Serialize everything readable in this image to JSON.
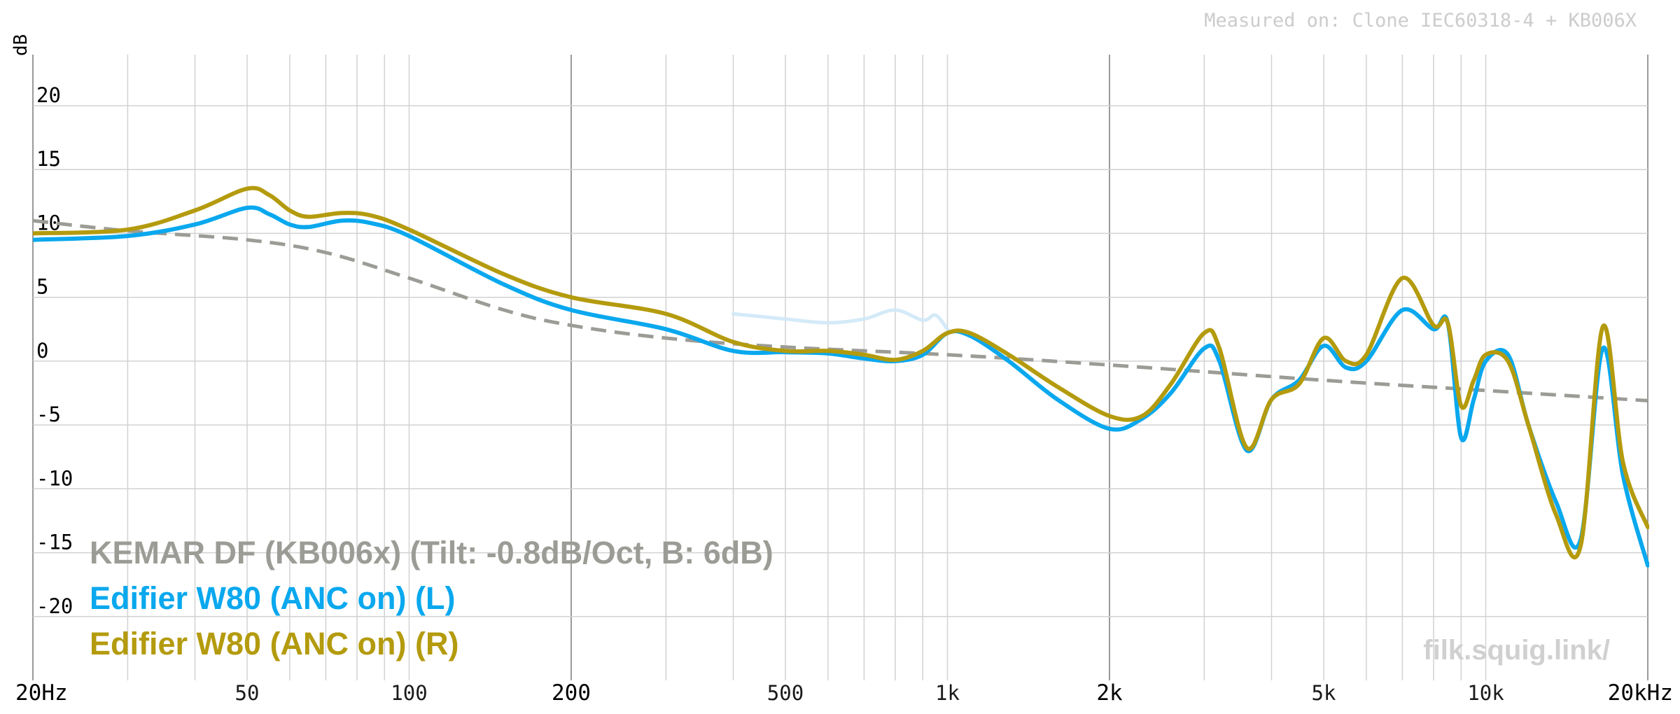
{
  "header": {
    "measured_on": "Measured on: Clone IEC60318-4 + KB006X",
    "watermark": "filk.squig.link/"
  },
  "chart_data": {
    "type": "line",
    "title": "",
    "xlabel": "",
    "ylabel": "dB",
    "x_scale": "log",
    "xlim": [
      20,
      20000
    ],
    "ylim": [
      -25,
      24
    ],
    "grid": true,
    "legend_position": "bottom-left",
    "y_ticks": [
      20,
      15,
      10,
      5,
      0,
      -5,
      -10,
      -15,
      -20
    ],
    "y_tick_labels": [
      "20",
      "15",
      "10",
      "5",
      "0",
      "-5",
      "-10",
      "-15",
      "-20"
    ],
    "x_ticks": [
      {
        "value": 20,
        "label": "20Hz",
        "major": true
      },
      {
        "value": 50,
        "label": "50",
        "major": false
      },
      {
        "value": 100,
        "label": "100",
        "major": false
      },
      {
        "value": 200,
        "label": "200",
        "major": true
      },
      {
        "value": 500,
        "label": "500",
        "major": false
      },
      {
        "value": 1000,
        "label": "1k",
        "major": false
      },
      {
        "value": 2000,
        "label": "2k",
        "major": true
      },
      {
        "value": 5000,
        "label": "5k",
        "major": false
      },
      {
        "value": 10000,
        "label": "10k",
        "major": false
      },
      {
        "value": 20000,
        "label": "20kHz",
        "major": true
      }
    ],
    "series": [
      {
        "name": "KEMAR DF (KB006x) (Tilt: -0.8dB/Oct, B: 6dB)",
        "color": "#9c9c96",
        "dashed": true,
        "points": [
          [
            20,
            11
          ],
          [
            30,
            10.2
          ],
          [
            50,
            9.5
          ],
          [
            70,
            8.5
          ],
          [
            100,
            6.5
          ],
          [
            150,
            4
          ],
          [
            200,
            2.8
          ],
          [
            300,
            1.8
          ],
          [
            500,
            1.1
          ],
          [
            1000,
            0.5
          ],
          [
            2000,
            -0.3
          ],
          [
            5000,
            -1.5
          ],
          [
            10000,
            -2.3
          ],
          [
            20000,
            -3.1
          ]
        ]
      },
      {
        "name": "Edifier W80 (ANC on) (L)",
        "color": "#0aa8ee",
        "dashed": false,
        "points": [
          [
            20,
            9.5
          ],
          [
            30,
            9.8
          ],
          [
            40,
            10.7
          ],
          [
            50,
            12
          ],
          [
            55,
            11.5
          ],
          [
            60,
            10.7
          ],
          [
            65,
            10.5
          ],
          [
            75,
            11
          ],
          [
            85,
            10.8
          ],
          [
            100,
            9.8
          ],
          [
            150,
            6
          ],
          [
            200,
            4
          ],
          [
            300,
            2.5
          ],
          [
            400,
            0.8
          ],
          [
            500,
            0.7
          ],
          [
            600,
            0.6
          ],
          [
            700,
            0.2
          ],
          [
            800,
            0
          ],
          [
            900,
            0.5
          ],
          [
            1000,
            2.2
          ],
          [
            1100,
            2
          ],
          [
            1300,
            0
          ],
          [
            1600,
            -3
          ],
          [
            2000,
            -5.3
          ],
          [
            2300,
            -4.5
          ],
          [
            2600,
            -2.5
          ],
          [
            3000,
            1
          ],
          [
            3200,
            0
          ],
          [
            3600,
            -7
          ],
          [
            4000,
            -3
          ],
          [
            4500,
            -1.5
          ],
          [
            5000,
            1.2
          ],
          [
            5500,
            -0.5
          ],
          [
            6000,
            0
          ],
          [
            7000,
            4
          ],
          [
            8000,
            2.5
          ],
          [
            8500,
            3
          ],
          [
            9000,
            -6
          ],
          [
            9500,
            -3
          ],
          [
            10000,
            0
          ],
          [
            11000,
            0.5
          ],
          [
            12000,
            -5
          ],
          [
            13500,
            -11
          ],
          [
            15000,
            -14
          ],
          [
            16500,
            1
          ],
          [
            18000,
            -9
          ],
          [
            20000,
            -16
          ]
        ]
      },
      {
        "name": "Edifier W80 (ANC on) (R)",
        "color": "#b49b0e",
        "dashed": false,
        "points": [
          [
            20,
            10
          ],
          [
            30,
            10.3
          ],
          [
            40,
            11.8
          ],
          [
            50,
            13.5
          ],
          [
            55,
            13
          ],
          [
            60,
            11.8
          ],
          [
            65,
            11.3
          ],
          [
            75,
            11.6
          ],
          [
            85,
            11.4
          ],
          [
            100,
            10.3
          ],
          [
            150,
            6.8
          ],
          [
            200,
            5
          ],
          [
            300,
            3.7
          ],
          [
            400,
            1.5
          ],
          [
            500,
            0.8
          ],
          [
            600,
            0.8
          ],
          [
            700,
            0.5
          ],
          [
            800,
            0.1
          ],
          [
            900,
            0.8
          ],
          [
            1000,
            2.2
          ],
          [
            1100,
            2.2
          ],
          [
            1300,
            0.5
          ],
          [
            1600,
            -2
          ],
          [
            2000,
            -4.3
          ],
          [
            2300,
            -4.3
          ],
          [
            2600,
            -1.8
          ],
          [
            3000,
            2.2
          ],
          [
            3200,
            1
          ],
          [
            3600,
            -6.8
          ],
          [
            4000,
            -3
          ],
          [
            4500,
            -1.8
          ],
          [
            5000,
            1.8
          ],
          [
            5500,
            0
          ],
          [
            6000,
            0.5
          ],
          [
            7000,
            6.5
          ],
          [
            8000,
            2.8
          ],
          [
            8500,
            3
          ],
          [
            9000,
            -3.5
          ],
          [
            9500,
            -1.5
          ],
          [
            10000,
            0.5
          ],
          [
            11000,
            0
          ],
          [
            12000,
            -5
          ],
          [
            13500,
            -12
          ],
          [
            15000,
            -14.5
          ],
          [
            16500,
            2.7
          ],
          [
            18000,
            -8
          ],
          [
            20000,
            -13
          ]
        ]
      }
    ],
    "ghost_series": {
      "color": "#cfe8f7",
      "points": [
        [
          400,
          3.7
        ],
        [
          500,
          3.3
        ],
        [
          600,
          3
        ],
        [
          700,
          3.3
        ],
        [
          800,
          4
        ],
        [
          900,
          3.2
        ],
        [
          950,
          3.6
        ],
        [
          1000,
          2.5
        ]
      ]
    }
  }
}
